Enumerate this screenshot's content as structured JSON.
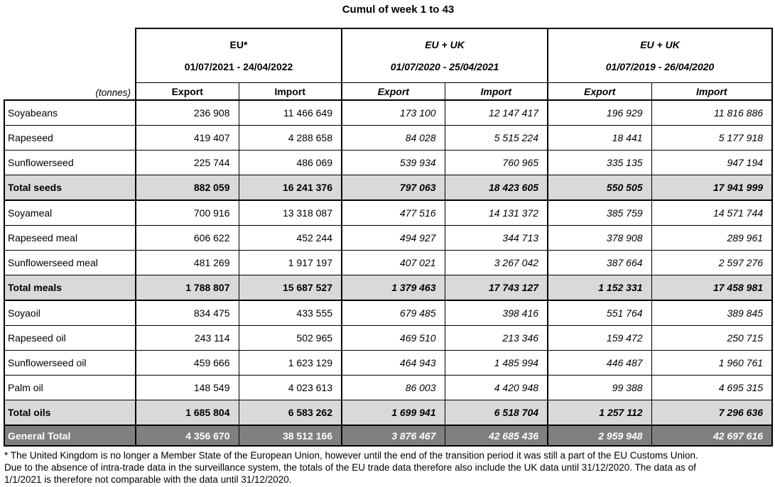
{
  "title": "Cumul of week 1 to 43",
  "unit_label": "(tonnes)",
  "colors": {
    "border": "#000000",
    "total_row_bg": "#d9d9d9",
    "grand_total_bg": "#808080",
    "grand_total_text": "#ffffff"
  },
  "table": {
    "groups": [
      {
        "name": "EU*",
        "period": "01/07/2021 - 24/04/2022",
        "italic": false
      },
      {
        "name": "EU + UK",
        "period": "01/07/2020 - 25/04/2021",
        "italic": true
      },
      {
        "name": "EU + UK",
        "period": "01/07/2019 - 26/04/2020",
        "italic": true
      }
    ],
    "col_headers": [
      "Export",
      "Import"
    ],
    "rows": [
      {
        "label": "Soyabeans",
        "type": "data",
        "values": [
          "236 908",
          "11 466 649",
          "173 100",
          "12 147 417",
          "196 929",
          "11 816 886"
        ]
      },
      {
        "label": "Rapeseed",
        "type": "data",
        "values": [
          "419 407",
          "4 288 658",
          "84 028",
          "5 515 224",
          "18 441",
          "5 177 918"
        ]
      },
      {
        "label": "Sunflowerseed",
        "type": "data",
        "values": [
          "225 744",
          "486 069",
          "539 934",
          "760 965",
          "335 135",
          "947 194"
        ]
      },
      {
        "label": "Total seeds",
        "type": "total",
        "values": [
          "882 059",
          "16 241 376",
          "797 063",
          "18 423 605",
          "550 505",
          "17 941 999"
        ]
      },
      {
        "label": "Soyameal",
        "type": "data",
        "values": [
          "700 916",
          "13 318 087",
          "477 516",
          "14 131 372",
          "385 759",
          "14 571 744"
        ]
      },
      {
        "label": "Rapeseed meal",
        "type": "data",
        "values": [
          "606 622",
          "452 244",
          "494 927",
          "344 713",
          "378 908",
          "289 961"
        ]
      },
      {
        "label": "Sunflowerseed meal",
        "type": "data",
        "values": [
          "481 269",
          "1 917 197",
          "407 021",
          "3 267 042",
          "387 664",
          "2 597 276"
        ]
      },
      {
        "label": "Total meals",
        "type": "total",
        "values": [
          "1 788 807",
          "15 687 527",
          "1 379 463",
          "17 743 127",
          "1 152 331",
          "17 458 981"
        ]
      },
      {
        "label": "Soyaoil",
        "type": "data",
        "values": [
          "834 475",
          "433 555",
          "679 485",
          "398 416",
          "551 764",
          "389 845"
        ]
      },
      {
        "label": "Rapeseed oil",
        "type": "data",
        "values": [
          "243 114",
          "502 965",
          "469 510",
          "213 346",
          "159 472",
          "250 715"
        ]
      },
      {
        "label": "Sunflowerseed oil",
        "type": "data",
        "values": [
          "459 666",
          "1 623 129",
          "464 943",
          "1 485 994",
          "446 487",
          "1 960 761"
        ]
      },
      {
        "label": "Palm oil",
        "type": "data",
        "values": [
          "148 549",
          "4 023 613",
          "86 003",
          "4 420 948",
          "99 388",
          "4 695 315"
        ]
      },
      {
        "label": "Total oils",
        "type": "total",
        "values": [
          "1 685 804",
          "6 583 262",
          "1 699 941",
          "6 518 704",
          "1 257 112",
          "7 296 636"
        ]
      },
      {
        "label": "General Total",
        "type": "grand",
        "values": [
          "4 356 670",
          "38 512 166",
          "3 876 467",
          "42 685 436",
          "2 959 948",
          "42 697 616"
        ]
      }
    ]
  },
  "footnote_lines": [
    "* The United Kingdom is no longer a Member State of the European Union, however until the end of the transition period it was still a part of the EU Customs Union.",
    "Due to the absence of intra-trade data in the surveillance system, the totals of the EU trade data  therefore also include the UK data until 31/12/2020. The data as of",
    "1/1/2021 is therefore not comparable with the data until 31/12/2020."
  ]
}
